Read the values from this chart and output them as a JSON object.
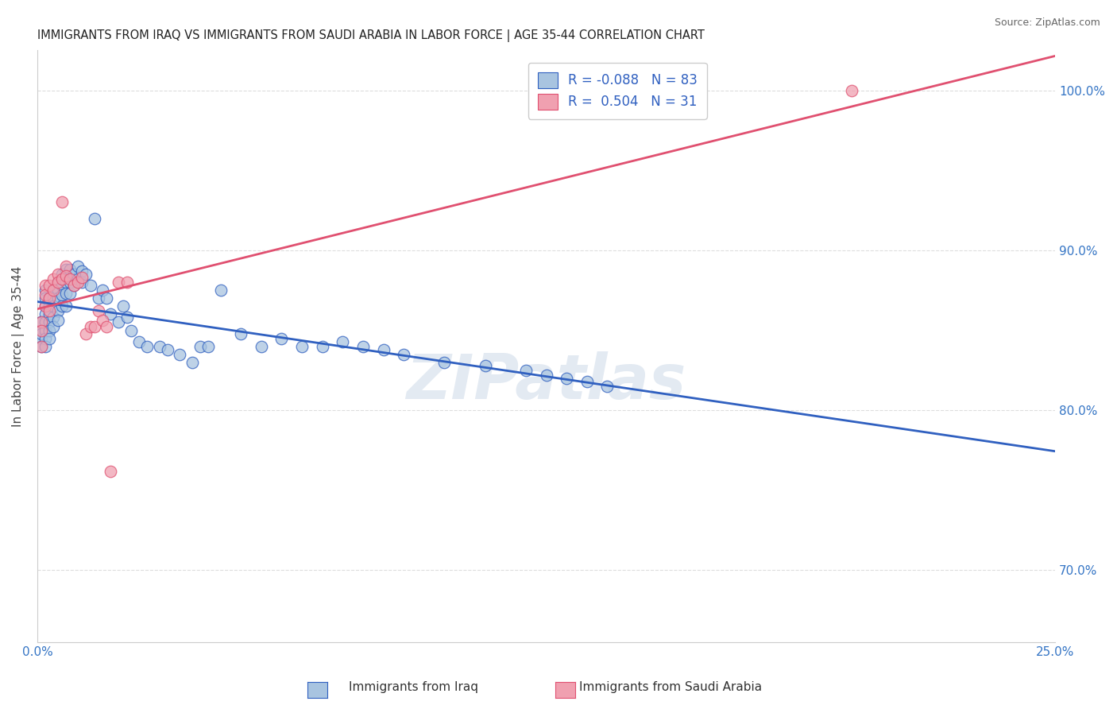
{
  "title": "IMMIGRANTS FROM IRAQ VS IMMIGRANTS FROM SAUDI ARABIA IN LABOR FORCE | AGE 35-44 CORRELATION CHART",
  "source": "Source: ZipAtlas.com",
  "ylabel": "In Labor Force | Age 35-44",
  "xlim": [
    0.0,
    0.25
  ],
  "ylim": [
    0.655,
    1.025
  ],
  "legend_iraq_r": "-0.088",
  "legend_iraq_n": "83",
  "legend_saudi_r": "0.504",
  "legend_saudi_n": "31",
  "iraq_color": "#a8c4e0",
  "saudi_color": "#f0a0b0",
  "iraq_line_color": "#3060c0",
  "saudi_line_color": "#e05070",
  "iraq_x": [
    0.001,
    0.001,
    0.001,
    0.001,
    0.001,
    0.001,
    0.002,
    0.002,
    0.002,
    0.002,
    0.002,
    0.002,
    0.002,
    0.002,
    0.003,
    0.003,
    0.003,
    0.003,
    0.003,
    0.003,
    0.004,
    0.004,
    0.004,
    0.004,
    0.004,
    0.005,
    0.005,
    0.005,
    0.005,
    0.005,
    0.006,
    0.006,
    0.006,
    0.006,
    0.007,
    0.007,
    0.007,
    0.007,
    0.008,
    0.008,
    0.008,
    0.009,
    0.009,
    0.01,
    0.01,
    0.011,
    0.011,
    0.012,
    0.013,
    0.014,
    0.015,
    0.016,
    0.017,
    0.018,
    0.02,
    0.021,
    0.022,
    0.023,
    0.025,
    0.027,
    0.03,
    0.032,
    0.035,
    0.038,
    0.04,
    0.042,
    0.045,
    0.05,
    0.055,
    0.06,
    0.065,
    0.07,
    0.075,
    0.08,
    0.085,
    0.09,
    0.1,
    0.11,
    0.12,
    0.125,
    0.13,
    0.135,
    0.14
  ],
  "iraq_y": [
    0.855,
    0.85,
    0.845,
    0.84,
    0.855,
    0.848,
    0.875,
    0.87,
    0.865,
    0.86,
    0.855,
    0.85,
    0.845,
    0.84,
    0.87,
    0.865,
    0.86,
    0.855,
    0.85,
    0.845,
    0.875,
    0.87,
    0.865,
    0.858,
    0.852,
    0.88,
    0.875,
    0.87,
    0.862,
    0.856,
    0.885,
    0.878,
    0.872,
    0.865,
    0.888,
    0.88,
    0.873,
    0.865,
    0.888,
    0.88,
    0.873,
    0.885,
    0.878,
    0.89,
    0.882,
    0.887,
    0.88,
    0.885,
    0.878,
    0.92,
    0.87,
    0.875,
    0.87,
    0.86,
    0.855,
    0.865,
    0.858,
    0.85,
    0.843,
    0.84,
    0.84,
    0.838,
    0.835,
    0.83,
    0.84,
    0.84,
    0.875,
    0.848,
    0.84,
    0.845,
    0.84,
    0.84,
    0.843,
    0.84,
    0.838,
    0.835,
    0.83,
    0.828,
    0.825,
    0.822,
    0.82,
    0.818,
    0.815
  ],
  "saudi_x": [
    0.001,
    0.001,
    0.001,
    0.002,
    0.002,
    0.002,
    0.003,
    0.003,
    0.003,
    0.004,
    0.004,
    0.005,
    0.005,
    0.006,
    0.006,
    0.007,
    0.007,
    0.008,
    0.009,
    0.01,
    0.011,
    0.012,
    0.013,
    0.014,
    0.015,
    0.016,
    0.017,
    0.018,
    0.02,
    0.022,
    0.2
  ],
  "saudi_y": [
    0.855,
    0.85,
    0.84,
    0.878,
    0.872,
    0.865,
    0.878,
    0.87,
    0.862,
    0.882,
    0.875,
    0.885,
    0.88,
    0.93,
    0.882,
    0.89,
    0.884,
    0.882,
    0.878,
    0.88,
    0.883,
    0.848,
    0.852,
    0.852,
    0.862,
    0.856,
    0.852,
    0.762,
    0.88,
    0.88,
    1.0
  ],
  "watermark": "ZIPatlas",
  "background_color": "#ffffff",
  "grid_color": "#dddddd"
}
